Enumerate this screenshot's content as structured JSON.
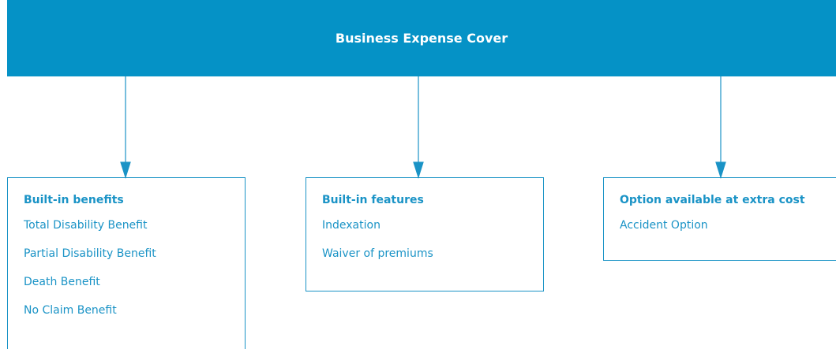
{
  "header": {
    "title": "Business Expense Cover"
  },
  "nodes": [
    {
      "label": "Built-in benefits",
      "items": [
        "Total Disability Benefit",
        "Partial Disability Benefit",
        "Death Benefit",
        "No Claim Benefit"
      ]
    },
    {
      "label": "Built-in features",
      "items": [
        "Indexation",
        "Waiver of premiums"
      ]
    },
    {
      "label": "Option available at extra cost",
      "items": [
        "Accident Option"
      ]
    }
  ]
}
